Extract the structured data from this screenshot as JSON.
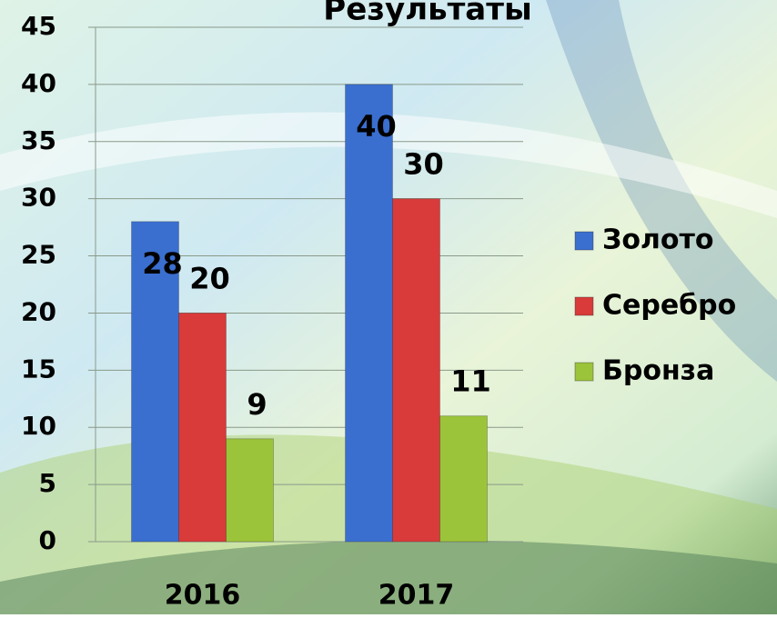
{
  "chart_data": {
    "type": "bar",
    "title": "Результаты",
    "categories": [
      "2016",
      "2017"
    ],
    "series": [
      {
        "name": "Золото",
        "color": "#3a6fd0",
        "values": [
          28,
          40
        ]
      },
      {
        "name": "Серебро",
        "color": "#d93a3a",
        "values": [
          20,
          30
        ]
      },
      {
        "name": "Бронза",
        "color": "#9cc43a",
        "values": [
          9,
          11
        ]
      }
    ],
    "ylim": [
      0,
      45
    ],
    "yticks": [
      0,
      5,
      10,
      15,
      20,
      25,
      30,
      35,
      40,
      45
    ],
    "grid": true,
    "legend": "right"
  }
}
